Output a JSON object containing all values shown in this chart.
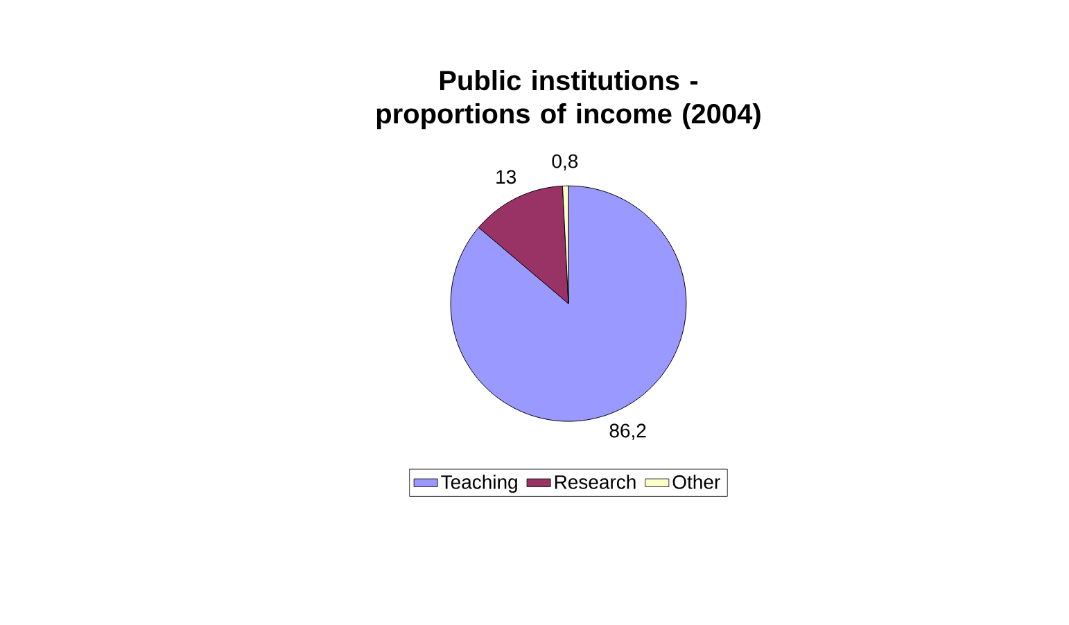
{
  "chart_data": {
    "type": "pie",
    "title": "Public institutions - proportions of income (2004)",
    "categories": [
      "Teaching",
      "Research",
      "Other"
    ],
    "values": [
      86.2,
      13,
      0.8
    ],
    "value_labels": [
      "86,2",
      "13",
      "0,8"
    ],
    "colors": [
      "#9999ff",
      "#993366",
      "#ffffcc"
    ],
    "legend": "bottom"
  }
}
